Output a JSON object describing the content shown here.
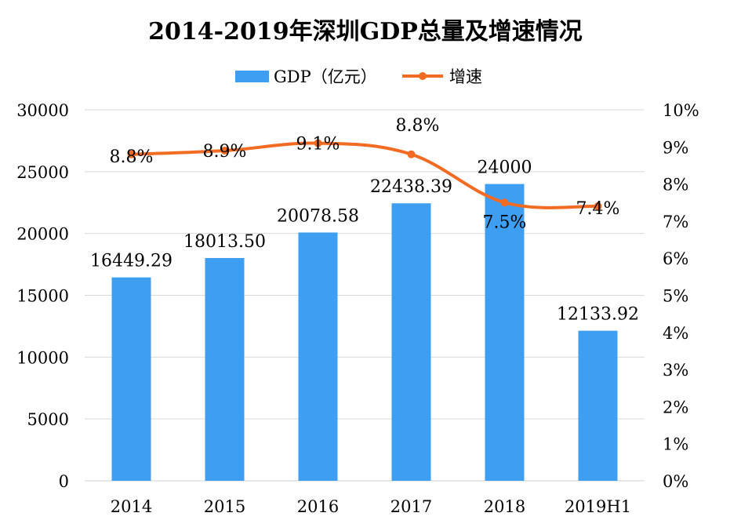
{
  "chart_data": {
    "type": "bar+line",
    "title": "2014-2019年深圳GDP总量及增速情况",
    "categories": [
      "2014",
      "2015",
      "2016",
      "2017",
      "2018",
      "2019H1"
    ],
    "series": [
      {
        "name": "GDP（亿元）",
        "type": "bar",
        "axis": "left",
        "color": "#3d9ef2",
        "values": [
          16449.29,
          18013.5,
          20078.58,
          22438.39,
          24000,
          12133.92
        ],
        "labels": [
          "16449.29",
          "18013.50",
          "20078.58",
          "22438.39",
          "24000",
          "12133.92"
        ]
      },
      {
        "name": "增速",
        "type": "line",
        "axis": "right",
        "color": "#f26b22",
        "values": [
          8.8,
          8.9,
          9.1,
          8.8,
          7.5,
          7.4
        ],
        "labels": [
          "8.8%",
          "8.9%",
          "9.1%",
          "8.8%",
          "7.5%",
          "7.4%"
        ]
      }
    ],
    "y_left": {
      "range": [
        0,
        30000
      ],
      "ticks": [
        "0",
        "5000",
        "10000",
        "15000",
        "20000",
        "25000",
        "30000"
      ]
    },
    "y_right": {
      "range": [
        0,
        10
      ],
      "ticks": [
        "0%",
        "1%",
        "2%",
        "3%",
        "4%",
        "5%",
        "6%",
        "7%",
        "8%",
        "9%",
        "10%"
      ]
    },
    "grid": true,
    "legend": "top"
  }
}
